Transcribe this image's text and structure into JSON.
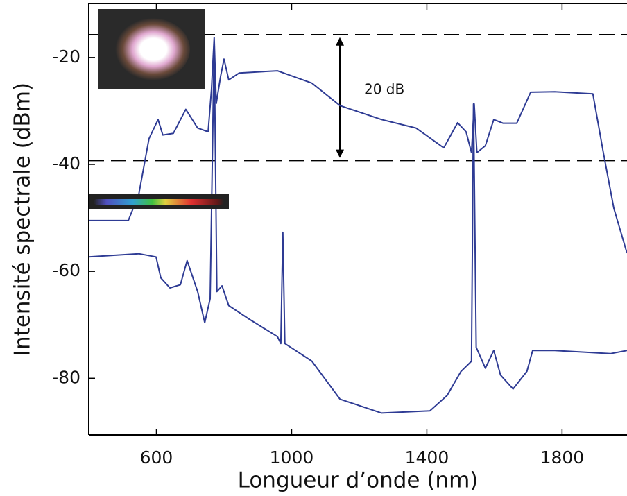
{
  "chart_data": {
    "type": "line",
    "xlabel": "Longueur d’onde (nm)",
    "ylabel": "Intensité spectrale (dBm)",
    "xlim": [
      400,
      1992
    ],
    "ylim": [
      -90.6,
      -9.9
    ],
    "xticks": [
      600,
      1000,
      1400,
      1800
    ],
    "yticks": [
      -20,
      -40,
      -60,
      -80
    ],
    "hlines": [
      -15.7,
      -39.3
    ],
    "annotation": "20 dB",
    "series": [
      {
        "color": "#2e3b94",
        "x": [
          400,
          517,
          548,
          578,
          605,
          619,
          650,
          687,
          722,
          753,
          763,
          771,
          777,
          790,
          800,
          814,
          845,
          958,
          1060,
          1143,
          1266,
          1368,
          1450,
          1491,
          1516,
          1532,
          1540,
          1548,
          1573,
          1598,
          1625,
          1666,
          1707,
          1778,
          1891,
          1922,
          1953,
          1992
        ],
        "values": [
          -50.5,
          -50.5,
          -45.6,
          -35.2,
          -31.6,
          -34.5,
          -34.2,
          -29.7,
          -33.2,
          -33.9,
          -26,
          -16.3,
          -28.6,
          -23.5,
          -20.3,
          -24.2,
          -22.9,
          -22.5,
          -24.8,
          -29,
          -31.6,
          -33.2,
          -36.9,
          -32.2,
          -33.9,
          -37.8,
          -28.7,
          -37.8,
          -36.5,
          -31.6,
          -32.3,
          -32.3,
          -26.5,
          -26.4,
          -26.8,
          -37.8,
          -48.2,
          -56.6
        ]
      },
      {
        "color": "#2e3b94",
        "x": [
          400,
          548,
          599,
          613,
          640,
          671,
          691,
          722,
          743,
          759,
          771,
          779,
          794,
          814,
          876,
          958,
          968,
          974,
          980,
          1060,
          1143,
          1266,
          1409,
          1460,
          1501,
          1532,
          1538,
          1546,
          1573,
          1598,
          1618,
          1655,
          1696,
          1713,
          1778,
          1943,
          1992
        ],
        "values": [
          -57.3,
          -56.7,
          -57.3,
          -61.2,
          -63.1,
          -62.5,
          -58,
          -63.8,
          -69.6,
          -65.1,
          -17,
          -63.8,
          -62.7,
          -66.4,
          -69,
          -72.2,
          -73.5,
          -52.7,
          -73.5,
          -76.8,
          -83.9,
          -86.5,
          -86.1,
          -83.2,
          -78.7,
          -76.8,
          -28.7,
          -74.2,
          -78.1,
          -74.8,
          -79.4,
          -82,
          -78.7,
          -74.8,
          -74.8,
          -75.4,
          -74.8
        ]
      }
    ]
  }
}
